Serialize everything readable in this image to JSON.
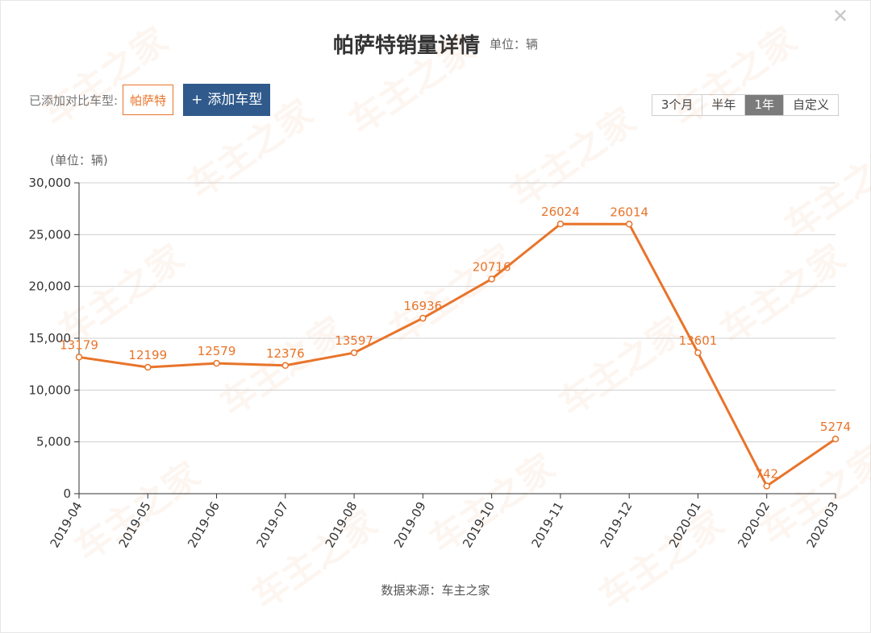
{
  "close_icon": "close-icon",
  "header": {
    "title": "帕萨特销量详情",
    "unit": "单位：辆"
  },
  "compare": {
    "label": "已添加对比车型:",
    "chip": "帕萨特",
    "add_plus": "+",
    "add_label": "添加车型"
  },
  "range_tabs": [
    "3个月",
    "半年",
    "1年",
    "自定义"
  ],
  "active_range": "1年",
  "watermark": "车主之家",
  "colors": {
    "line": "#e8742a",
    "accent_button": "#2f5a8b",
    "active_tab": "#7b7b7b"
  },
  "chart_data": {
    "type": "line",
    "title": "",
    "ylabel": "(单位：辆)",
    "xlabel": "",
    "categories": [
      "2019-04",
      "2019-05",
      "2019-06",
      "2019-07",
      "2019-08",
      "2019-09",
      "2019-10",
      "2019-11",
      "2019-12",
      "2020-01",
      "2020-02",
      "2020-03"
    ],
    "series": [
      {
        "values": [
          13179,
          12199,
          12579,
          12376,
          13597,
          16936,
          20716,
          26024,
          26014,
          13601,
          742,
          5274
        ]
      }
    ],
    "ylim": [
      0,
      30000
    ],
    "yticks": [
      "0",
      "5,000",
      "10,000",
      "15,000",
      "20,000",
      "25,000",
      "30,000"
    ],
    "grid": true,
    "legend": "none"
  },
  "source": "数据来源：车主之家"
}
